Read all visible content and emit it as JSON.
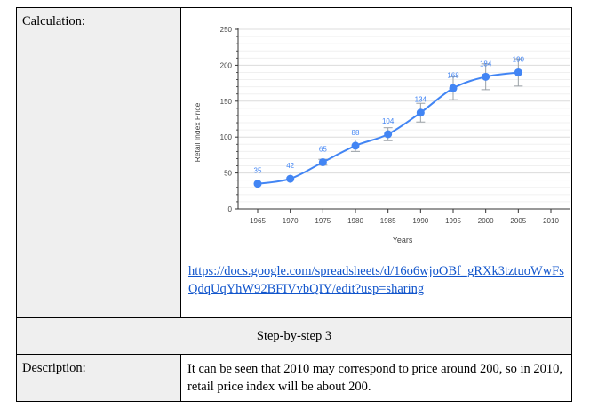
{
  "table": {
    "row1_label": "Calculation:",
    "link_text": "https://docs.google.com/spreadsheets/d/16o6wjoOBf_gRXk3tztuoWwFsQdqUqYhW92BFIVvbQIY/edit?usp=sharing",
    "row2_heading": "Step-by-step 3",
    "row3_label": "Description:",
    "row3_text": "It can be seen that 2010 may correspond to price around 200, so in 2010, retail price index will be about 200."
  },
  "chart_data": {
    "type": "line",
    "title": "",
    "xlabel": "Years",
    "ylabel": "Retail Index Price",
    "xlim": [
      1962,
      2013
    ],
    "ylim": [
      0,
      250
    ],
    "x_ticks": [
      "1965",
      "1970",
      "1975",
      "1980",
      "1985",
      "1990",
      "1995",
      "2000",
      "2005",
      "2010"
    ],
    "y_ticks": [
      "0",
      "50",
      "100",
      "150",
      "200",
      "250"
    ],
    "x": [
      1965,
      1970,
      1975,
      1980,
      1985,
      1990,
      1995,
      2000,
      2005
    ],
    "values": [
      35,
      42,
      65,
      88,
      104,
      134,
      168,
      184,
      190
    ],
    "data_labels": [
      "35",
      "42",
      "65",
      "88",
      "104",
      "134",
      "168",
      "184",
      "190"
    ],
    "error_low": [
      35,
      42,
      61,
      80,
      95,
      121,
      152,
      166,
      171
    ],
    "error_high": [
      35,
      42,
      69,
      96,
      113,
      147,
      184,
      202,
      209
    ],
    "colors": {
      "series": "#4285f4",
      "grid": "#e6e6e6",
      "axis": "#333333",
      "error": "#9aa0a6"
    }
  }
}
